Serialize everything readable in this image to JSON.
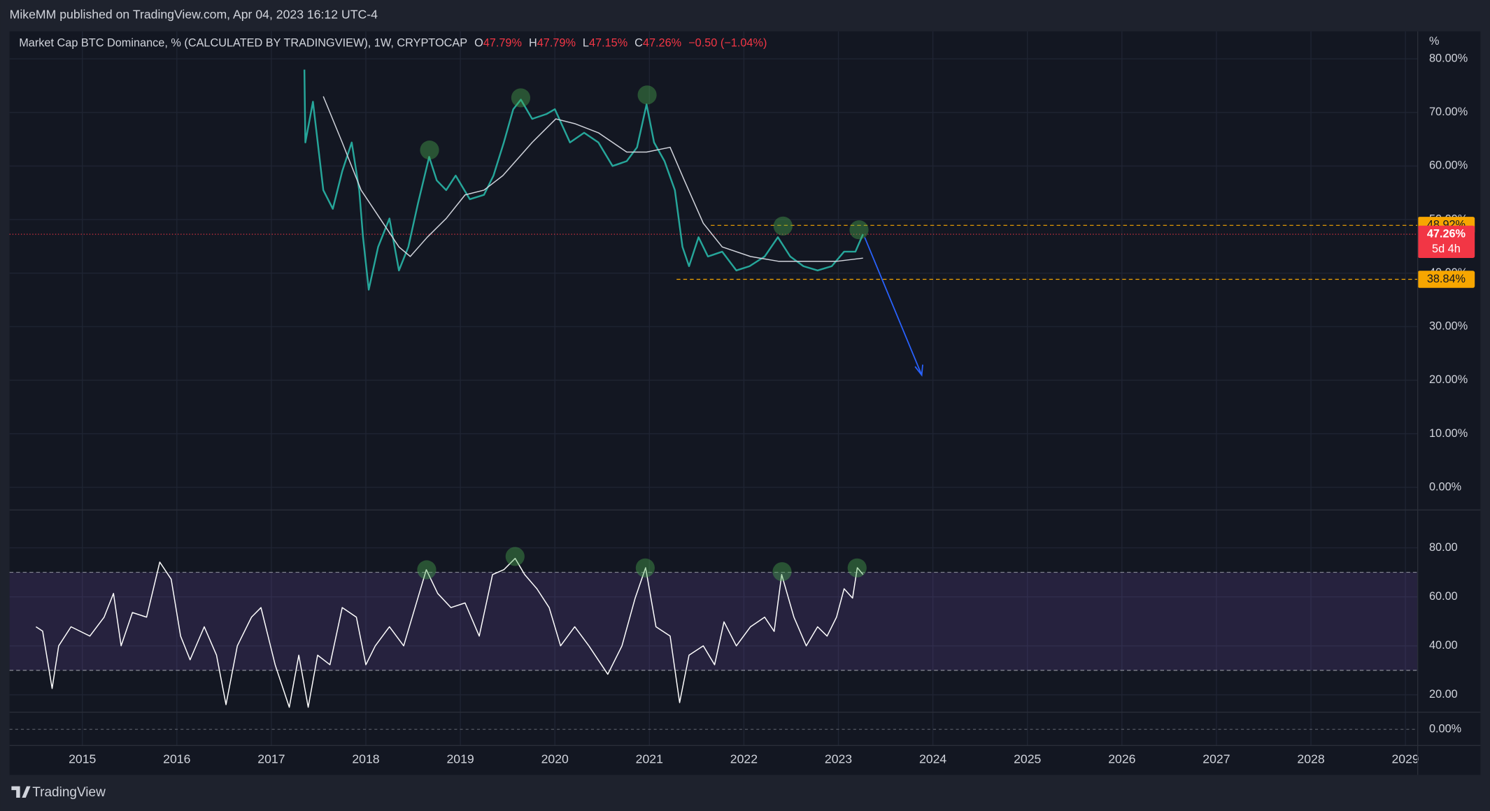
{
  "header": "MikeMM published on TradingView.com, Apr 04, 2023 16:12 UTC-4",
  "footer": "TradingView",
  "legend": {
    "symbol": "Market Cap BTC Dominance, % (CALCULATED BY TRADINGVIEW), 1W, CRYPTOCAP",
    "o_label": "O",
    "o": "47.79%",
    "h_label": "H",
    "h": "47.79%",
    "l_label": "L",
    "l": "47.15%",
    "c_label": "C",
    "c": "47.26%",
    "change": "−0.50 (−1.04%)"
  },
  "chart_data": [
    {
      "type": "line",
      "y_unit": "%",
      "grid": true,
      "xlim": [
        2014.23,
        2029.13
      ],
      "xticks": [
        2015,
        2016,
        2017,
        2018,
        2019,
        2020,
        2021,
        2022,
        2023,
        2024,
        2025,
        2026,
        2027,
        2028,
        2029
      ],
      "ylim": [
        -4.22,
        85.14
      ],
      "yticks": [
        {
          "value": 0,
          "label": "0.00%"
        },
        {
          "value": 10,
          "label": "10.00%"
        },
        {
          "value": 20,
          "label": "20.00%"
        },
        {
          "value": 30,
          "label": "30.00%"
        },
        {
          "value": 40,
          "label": "40.00%"
        },
        {
          "value": 50,
          "label": "50.00%"
        },
        {
          "value": 60,
          "label": "60.00%"
        },
        {
          "value": 70,
          "label": "70.00%"
        },
        {
          "value": 80,
          "label": "80.00%"
        }
      ],
      "series": [
        {
          "color": "#26a69a",
          "x": [
            2017.35,
            2017.36,
            2017.44,
            2017.55,
            2017.65,
            2017.75,
            2017.85,
            2017.93,
            2017.97,
            2018.03,
            2018.13,
            2018.25,
            2018.35,
            2018.45,
            2018.55,
            2018.67,
            2018.75,
            2018.85,
            2018.95,
            2019.1,
            2019.25,
            2019.35,
            2019.46,
            2019.56,
            2019.64,
            2019.76,
            2019.91,
            2020.0,
            2020.16,
            2020.31,
            2020.46,
            2020.61,
            2020.76,
            2020.87,
            2020.97,
            2021.05,
            2021.16,
            2021.27,
            2021.35,
            2021.42,
            2021.52,
            2021.62,
            2021.77,
            2021.92,
            2022.06,
            2022.22,
            2022.36,
            2022.49,
            2022.63,
            2022.78,
            2022.93,
            2023.06,
            2023.18,
            2023.26
          ],
          "values": [
            78,
            64.4,
            72,
            55.5,
            52,
            59,
            64.4,
            55.5,
            46.7,
            36.9,
            44.9,
            50.2,
            40.5,
            44.9,
            52.9,
            61.7,
            57.3,
            55.5,
            58.2,
            53.8,
            54.6,
            58.2,
            64.4,
            70.6,
            72.4,
            68.8,
            69.7,
            70.6,
            64.4,
            66.2,
            64.4,
            60,
            60.9,
            63.5,
            71.5,
            64.4,
            60.9,
            55.5,
            44.9,
            41.3,
            46.7,
            43.1,
            44,
            40.5,
            41.3,
            43.1,
            46.7,
            43.1,
            41.3,
            40.5,
            41.3,
            44,
            44,
            47.26
          ]
        },
        {
          "color": "#d1d4dc",
          "x": [
            2017.55,
            2017.75,
            2017.95,
            2018.15,
            2018.35,
            2018.47,
            2018.65,
            2018.85,
            2019.05,
            2019.25,
            2019.45,
            2019.76,
            2020.01,
            2020.21,
            2020.46,
            2020.76,
            2020.97,
            2021.22,
            2021.37,
            2021.57,
            2021.77,
            2022.07,
            2022.37,
            2022.67,
            2022.98,
            2023.26
          ],
          "values": [
            73,
            64.4,
            55.5,
            50.2,
            44.9,
            43.1,
            46.7,
            50.2,
            54.6,
            55.5,
            58.2,
            64.4,
            68.8,
            67.9,
            66.2,
            62.6,
            62.6,
            63.5,
            57.3,
            49.3,
            44.9,
            43.1,
            42.2,
            42.2,
            42.2,
            42.8
          ]
        }
      ],
      "levels": [
        {
          "value": 48.92,
          "label": "48.92%",
          "color": "#f7a600"
        },
        {
          "value": 38.84,
          "label": "38.84%",
          "color": "#f7a600"
        }
      ],
      "last": {
        "value": 47.26,
        "label": "47.26%",
        "countdown": "5d 4h",
        "color": "#f23645"
      }
    },
    {
      "type": "line",
      "grid": true,
      "ylim": [
        12.9,
        94.3
      ],
      "yticks": [
        {
          "value": 20,
          "label": "20.00"
        },
        {
          "value": 40,
          "label": "40.00"
        },
        {
          "value": 60,
          "label": "60.00"
        },
        {
          "value": 80,
          "label": "80.00"
        }
      ],
      "band": [
        30,
        70
      ],
      "series": [
        {
          "color": "#ffffff",
          "x": [
            2014.51,
            2014.58,
            2014.68,
            2014.75,
            2014.88,
            2015.08,
            2015.23,
            2015.33,
            2015.41,
            2015.53,
            2015.68,
            2015.82,
            2015.94,
            2016.04,
            2016.14,
            2016.29,
            2016.42,
            2016.52,
            2016.64,
            2016.79,
            2016.89,
            2017.04,
            2017.19,
            2017.29,
            2017.39,
            2017.49,
            2017.62,
            2017.75,
            2017.9,
            2018.0,
            2018.1,
            2018.25,
            2018.4,
            2018.55,
            2018.64,
            2018.76,
            2018.9,
            2019.05,
            2019.2,
            2019.34,
            2019.46,
            2019.58,
            2019.68,
            2019.81,
            2019.94,
            2020.06,
            2020.21,
            2020.36,
            2020.56,
            2020.71,
            2020.85,
            2020.96,
            2021.07,
            2021.22,
            2021.32,
            2021.42,
            2021.57,
            2021.69,
            2021.79,
            2021.92,
            2022.07,
            2022.22,
            2022.32,
            2022.4,
            2022.53,
            2022.66,
            2022.78,
            2022.88,
            2022.98,
            2023.06,
            2023.15,
            2023.2,
            2023.26
          ],
          "values": [
            47.8,
            46,
            22.6,
            40,
            47.8,
            44,
            51.7,
            61.4,
            40,
            53.6,
            51.7,
            74.2,
            67.2,
            44,
            34.3,
            47.8,
            36.2,
            16,
            40,
            51.7,
            55.6,
            32.3,
            14.9,
            36.2,
            14.9,
            36.2,
            32.3,
            55.6,
            51.7,
            32.3,
            40,
            47.8,
            40,
            59.5,
            71.1,
            61.4,
            55.6,
            57.5,
            44,
            69.1,
            71.1,
            75.7,
            69.1,
            63.3,
            55.6,
            40,
            47.8,
            40,
            28.4,
            40,
            59.5,
            71.9,
            47.8,
            44,
            16.8,
            36.2,
            40,
            32.3,
            49.8,
            40,
            47.8,
            51.7,
            45.9,
            69.1,
            51.7,
            40,
            47.8,
            44,
            51.7,
            63.3,
            59.5,
            71.9,
            69.1
          ]
        }
      ]
    },
    {
      "type": "line",
      "grid": false,
      "ylim": [
        -1.7,
        1.8
      ],
      "yticks": [
        {
          "value": 0,
          "label": "0.00%"
        }
      ],
      "series": []
    }
  ]
}
